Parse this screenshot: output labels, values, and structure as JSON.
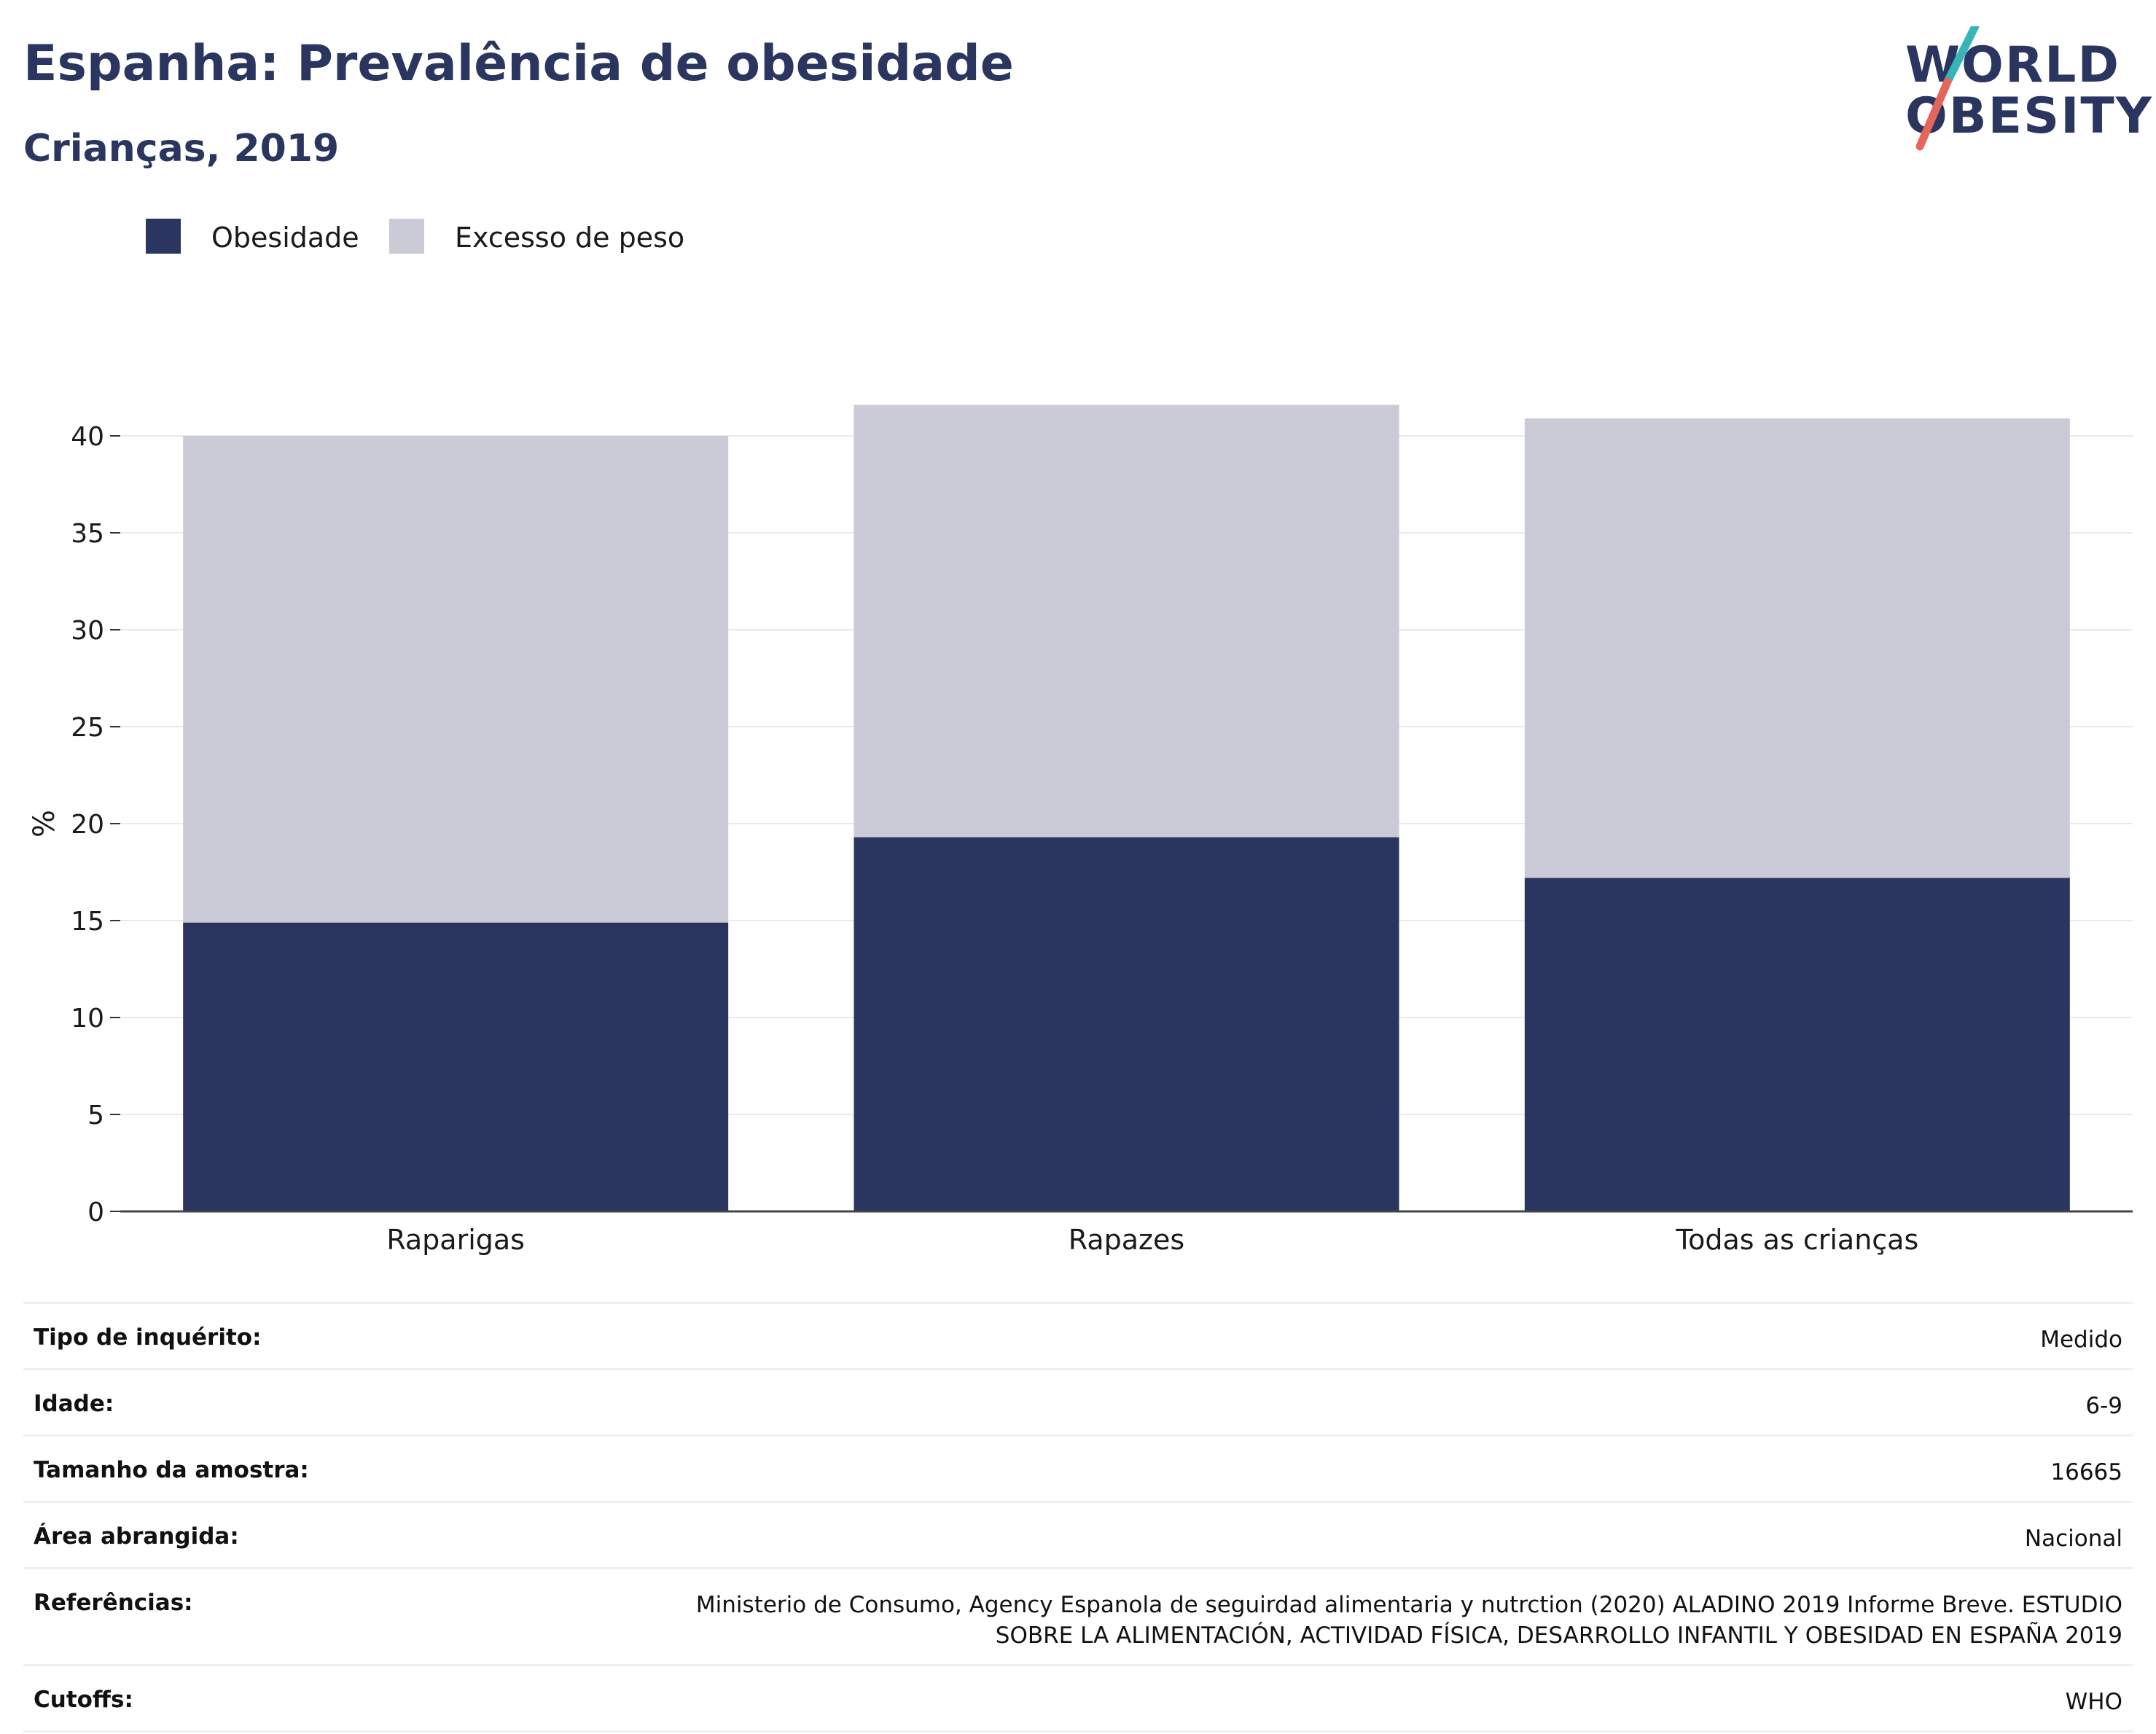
{
  "header": {
    "title": "Espanha: Prevalência de obesidade",
    "subtitle": "Crianças, 2019"
  },
  "logo": {
    "line1": "WORLD",
    "line2": "OBESITY",
    "colors": {
      "text": "#2a365f",
      "slash_top": "#35b5b5",
      "slash_bottom": "#e4665a"
    }
  },
  "legend": {
    "items": [
      {
        "label": "Obesidade",
        "color": "#2a365f"
      },
      {
        "label": "Excesso de peso",
        "color": "#cacbd7"
      }
    ]
  },
  "chart_data": {
    "type": "bar",
    "stacked": true,
    "categories": [
      "Raparigas",
      "Rapazes",
      "Todas as crianças"
    ],
    "series": [
      {
        "name": "Obesidade",
        "values": [
          14.9,
          19.3,
          17.2
        ],
        "color": "#2a365f"
      },
      {
        "name": "Excesso de peso",
        "values": [
          25.1,
          22.3,
          23.7
        ],
        "color": "#cacbd7"
      }
    ],
    "ylabel": "%",
    "xlabel": "",
    "ylim": [
      0,
      43
    ],
    "yticks": [
      0,
      5,
      10,
      15,
      20,
      25,
      30,
      35,
      40
    ],
    "grid": true,
    "legend_position": "top-left"
  },
  "info": {
    "rows": [
      {
        "label": "Tipo de inquérito:",
        "value": "Medido"
      },
      {
        "label": "Idade:",
        "value": "6-9"
      },
      {
        "label": "Tamanho da amostra:",
        "value": "16665"
      },
      {
        "label": "Área abrangida:",
        "value": "Nacional"
      },
      {
        "label": "Referências:",
        "value": "Ministerio de Consumo, Agency Espanola de seguirdad alimentaria y nutrction (2020) ALADINO 2019 Informe Breve. ESTUDIO SOBRE LA ALIMENTACIÓN, ACTIVIDAD FÍSICA, DESARROLLO INFANTIL Y OBESIDAD EN ESPAÑA 2019"
      },
      {
        "label": "Cutoffs:",
        "value": "WHO"
      }
    ]
  }
}
